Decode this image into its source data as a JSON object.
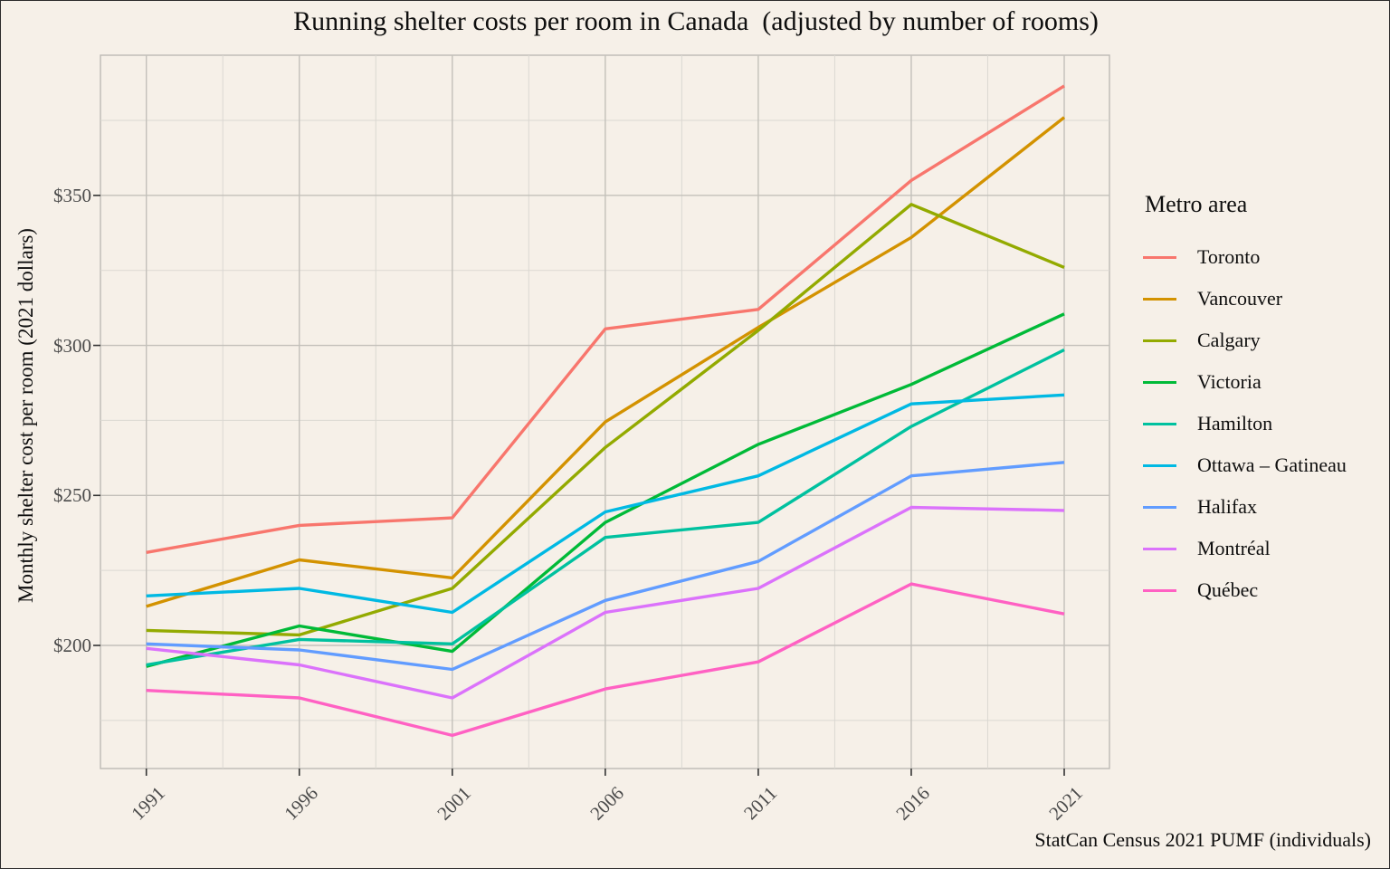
{
  "figure": {
    "title": "Running shelter costs per room in Canada  (adjusted by number of rooms)",
    "y_axis_label": "Monthly shelter cost per room (2021 dollars)",
    "legend_title": "Metro area",
    "caption": "StatCan Census 2021 PUMF (individuals)"
  },
  "chart_data": {
    "type": "line",
    "title": "Running shelter costs per room in Canada  (adjusted by number of rooms)",
    "xlabel": "",
    "ylabel": "Monthly shelter cost per room (2021 dollars)",
    "x": [
      1991,
      1996,
      2001,
      2006,
      2011,
      2016,
      2021
    ],
    "x_tick_labels": [
      "1991",
      "1996",
      "2001",
      "2006",
      "2011",
      "2016",
      "2021"
    ],
    "y_ticks": [
      200,
      250,
      300,
      350
    ],
    "y_tick_labels": [
      "$200",
      "$250",
      "$300",
      "$350"
    ],
    "y_minor_ticks": [
      175,
      225,
      275,
      325,
      375
    ],
    "ylim": [
      159,
      396
    ],
    "grid": true,
    "legend_position": "right",
    "series": [
      {
        "name": "Toronto",
        "color": "#F8766D",
        "values": [
          231,
          240,
          242.5,
          305.5,
          312,
          355,
          386.5
        ]
      },
      {
        "name": "Vancouver",
        "color": "#D39200",
        "values": [
          213,
          228.5,
          222.5,
          274.5,
          306,
          336,
          376
        ]
      },
      {
        "name": "Calgary",
        "color": "#93AA00",
        "values": [
          205,
          203.5,
          219,
          266,
          305,
          347,
          326
        ]
      },
      {
        "name": "Victoria",
        "color": "#00BA38",
        "values": [
          193,
          206.5,
          198,
          241,
          267,
          287,
          310.5
        ]
      },
      {
        "name": "Hamilton",
        "color": "#00C19F",
        "values": [
          193.5,
          202,
          200.5,
          236,
          241,
          273,
          298.5
        ]
      },
      {
        "name": "Ottawa – Gatineau",
        "color": "#00B9E3",
        "values": [
          216.5,
          219,
          211,
          244.5,
          256.5,
          280.5,
          283.5
        ]
      },
      {
        "name": "Halifax",
        "color": "#619CFF",
        "values": [
          200.5,
          198.5,
          192,
          215,
          228,
          256.5,
          261
        ]
      },
      {
        "name": "Montréal",
        "color": "#DB72FB",
        "values": [
          199,
          193.5,
          182.5,
          211,
          219,
          246,
          245
        ]
      },
      {
        "name": "Québec",
        "color": "#FF61C3",
        "values": [
          185,
          182.5,
          170,
          185.5,
          194.5,
          220.5,
          210.5
        ]
      }
    ]
  },
  "theme": {
    "background": "#F6F0E8",
    "panel_background": "#F6F0E8",
    "grid_major": "#C3C0BA",
    "grid_minor": "#DBD8D2",
    "panel_border": "#BDBAB4",
    "tick_mark": "#333333",
    "tick_text": "#4a4a4a",
    "text": "#0e0e0e"
  }
}
